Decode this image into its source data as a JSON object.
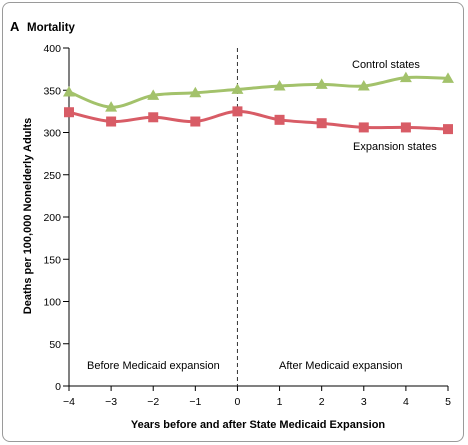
{
  "panel": {
    "letter": "A",
    "title": "Mortality"
  },
  "chart_data": {
    "type": "line",
    "xlabel": "Years before and after State Medicaid Expansion",
    "ylabel": "Deaths per 100,000 Nonelderly Adults",
    "xlim": [
      -4,
      5
    ],
    "ylim": [
      0,
      400
    ],
    "x": [
      -4,
      -3,
      -2,
      -1,
      0,
      1,
      2,
      3,
      4,
      5
    ],
    "x_tick_labels": [
      "−4",
      "−3",
      "−2",
      "−1",
      "0",
      "1",
      "2",
      "3",
      "4",
      "5"
    ],
    "y_ticks": [
      0,
      50,
      100,
      150,
      200,
      250,
      300,
      350,
      400
    ],
    "y_tick_labels": [
      "0",
      "50",
      "100",
      "150",
      "200",
      "250",
      "300",
      "350",
      "400"
    ],
    "grid": false,
    "series": [
      {
        "name": "Control states",
        "marker": "triangle",
        "color": "#a3c26b",
        "values": [
          348,
          330,
          344,
          347,
          351,
          355,
          357,
          355,
          365,
          364
        ]
      },
      {
        "name": "Expansion states",
        "marker": "square",
        "color": "#d85c66",
        "values": [
          324,
          313,
          318,
          313,
          325,
          315,
          311,
          306,
          306,
          304
        ]
      }
    ],
    "reference_line": {
      "x": 0,
      "style": "dashed"
    },
    "annotations": {
      "before": "Before Medicaid expansion",
      "after": "After Medicaid expansion"
    }
  }
}
